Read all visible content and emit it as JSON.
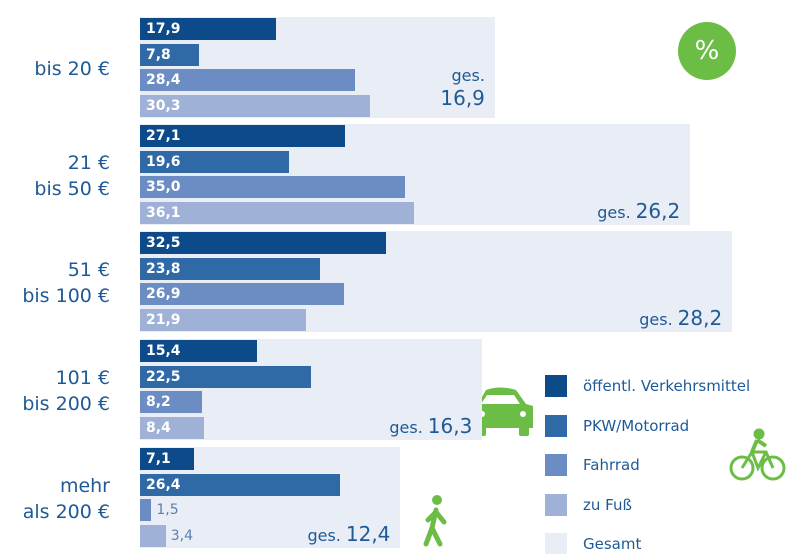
{
  "chart_data": {
    "type": "bar",
    "orientation": "horizontal",
    "unit_badge": "%",
    "total_prefix": "ges.",
    "categories": [
      "bis 20 €",
      "21 €\nbis 50 €",
      "51 €\nbis 100 €",
      "101 €\nbis 200 €",
      "mehr\nals 200 €"
    ],
    "series": [
      {
        "name": "öffentl. Verkehrsmittel",
        "color": "#0c4a89",
        "values": [
          17.9,
          27.1,
          32.5,
          15.4,
          7.1
        ],
        "value_labels": [
          "17,9",
          "27,1",
          "32,5",
          "15,4",
          "7,1"
        ]
      },
      {
        "name": "PKW/Motorrad",
        "color": "#2f69a6",
        "values": [
          7.8,
          19.6,
          23.8,
          22.5,
          26.4
        ],
        "value_labels": [
          "7,8",
          "19,6",
          "23,8",
          "22,5",
          "26,4"
        ]
      },
      {
        "name": "Fahrrad",
        "color": "#6b8dc3",
        "values": [
          28.4,
          35.0,
          26.9,
          8.2,
          1.5
        ],
        "value_labels": [
          "28,4",
          "35,0",
          "26,9",
          "8,2",
          "1,5"
        ]
      },
      {
        "name": "zu Fuß",
        "color": "#9fb1d7",
        "values": [
          30.3,
          36.1,
          21.9,
          8.4,
          3.4
        ],
        "value_labels": [
          "30,3",
          "36,1",
          "21,9",
          "8,4",
          "3,4"
        ]
      },
      {
        "name": "Gesamt",
        "color": "#e9edf6",
        "values": [
          16.9,
          26.2,
          28.2,
          16.3,
          12.4
        ],
        "value_labels": [
          "16,9",
          "26,2",
          "28,2",
          "16,3",
          "12,4"
        ]
      }
    ]
  }
}
